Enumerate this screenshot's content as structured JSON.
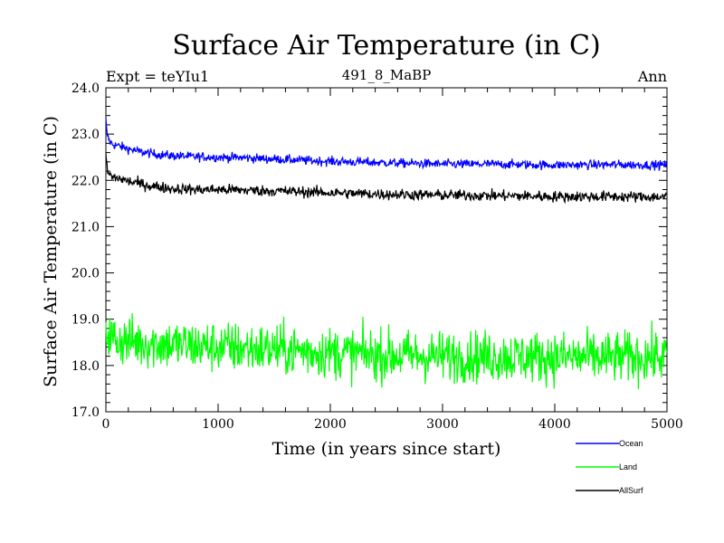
{
  "chart_data": {
    "type": "line",
    "title": "Surface Air Temperature (in C)",
    "subtitle": "491_8_MaBP",
    "expt_label": "Expt = teYIu1",
    "period_label": "Ann",
    "xlabel": "Time (in years since start)",
    "ylabel": "Surface Air Temperature (in C)",
    "xlim": [
      0,
      5000
    ],
    "ylim": [
      17.0,
      24.0
    ],
    "x_ticks": [
      0,
      1000,
      2000,
      3000,
      4000,
      5000
    ],
    "x_tick_labels": [
      "0",
      "1000",
      "2000",
      "3000",
      "4000",
      "5000"
    ],
    "y_ticks": [
      17.0,
      18.0,
      19.0,
      20.0,
      21.0,
      22.0,
      23.0,
      24.0
    ],
    "y_tick_labels": [
      "17.0",
      "18.0",
      "19.0",
      "20.0",
      "21.0",
      "22.0",
      "23.0",
      "24.0"
    ],
    "grid": false,
    "legend_position": "bottom-right",
    "series": [
      {
        "name": "Ocean",
        "color": "#0000ff",
        "x": [
          0,
          10,
          30,
          60,
          100,
          150,
          200,
          300,
          400,
          500,
          600,
          700,
          800,
          1000,
          1200,
          1500,
          1800,
          2000,
          2500,
          3000,
          3500,
          4000,
          4500,
          5000
        ],
        "values": [
          23.3,
          23.0,
          22.85,
          22.78,
          22.75,
          22.72,
          22.68,
          22.62,
          22.58,
          22.55,
          22.53,
          22.52,
          22.51,
          22.5,
          22.49,
          22.46,
          22.43,
          22.41,
          22.38,
          22.35,
          22.35,
          22.33,
          22.34,
          22.33
        ],
        "noise": 0.05
      },
      {
        "name": "Land",
        "color": "#00ff00",
        "x": [
          0,
          50,
          100,
          200,
          400,
          600,
          800,
          1000,
          1500,
          2000,
          2500,
          3000,
          3500,
          4000,
          4500,
          5000
        ],
        "values": [
          18.75,
          18.6,
          18.55,
          18.52,
          18.48,
          18.45,
          18.42,
          18.4,
          18.35,
          18.28,
          18.22,
          18.2,
          18.19,
          18.18,
          18.17,
          18.2
        ],
        "noise": 0.28
      },
      {
        "name": "AllSurf",
        "color": "#000000",
        "x": [
          0,
          10,
          30,
          60,
          100,
          150,
          200,
          300,
          400,
          500,
          600,
          700,
          800,
          1000,
          1200,
          1500,
          1800,
          2000,
          2500,
          3000,
          3500,
          4000,
          4500,
          5000
        ],
        "values": [
          22.6,
          22.25,
          22.12,
          22.07,
          22.05,
          22.02,
          21.98,
          21.93,
          21.88,
          21.85,
          21.82,
          21.81,
          21.8,
          21.8,
          21.79,
          21.77,
          21.75,
          21.73,
          21.7,
          21.68,
          21.67,
          21.65,
          21.65,
          21.64
        ],
        "noise": 0.06
      }
    ]
  }
}
